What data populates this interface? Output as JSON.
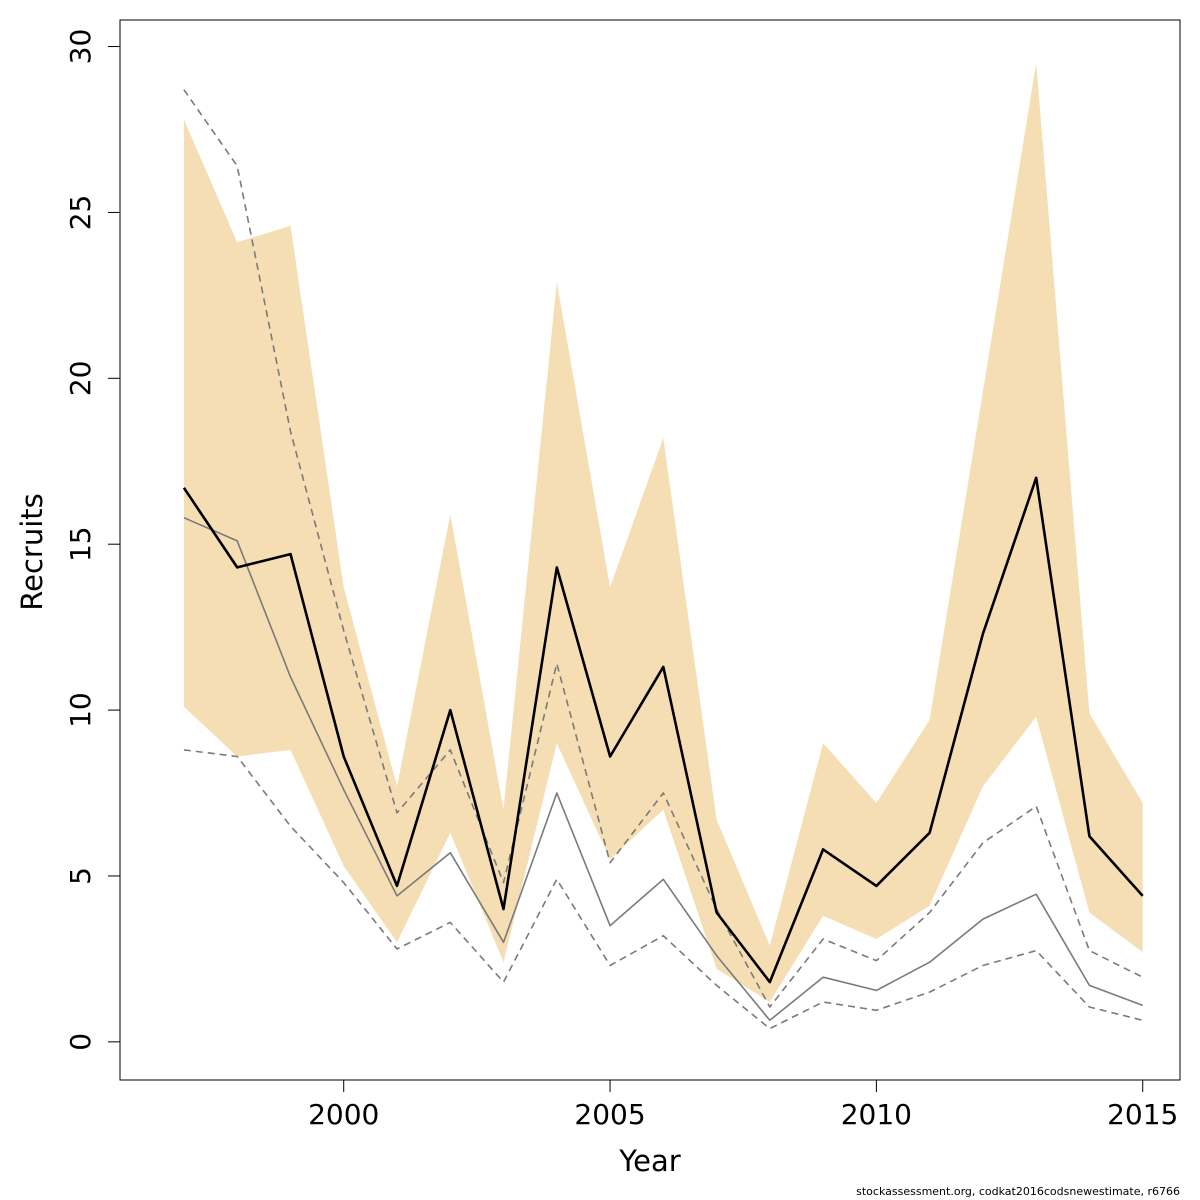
{
  "chart_data": {
    "type": "line",
    "xlabel": "Year",
    "ylabel": "Recruits",
    "x": [
      1997,
      1998,
      1999,
      2000,
      2001,
      2002,
      2003,
      2004,
      2005,
      2006,
      2007,
      2008,
      2009,
      2010,
      2011,
      2012,
      2013,
      2014,
      2015
    ],
    "xticks": [
      "2000",
      "2005",
      "2010",
      "2015"
    ],
    "yticks": [
      "0",
      "5",
      "10",
      "15",
      "20",
      "25",
      "30"
    ],
    "xlim": [
      1995.8,
      2015.7
    ],
    "ylim": [
      -1.15,
      30.8
    ],
    "grid": false,
    "legend": "none",
    "series": [
      {
        "role": "band",
        "lower": [
          10.1,
          8.6,
          8.8,
          5.3,
          3.0,
          6.3,
          2.4,
          9.0,
          5.5,
          7.0,
          2.2,
          1.2,
          3.8,
          3.1,
          4.1,
          7.7,
          9.8,
          3.9,
          2.7
        ],
        "upper": [
          27.8,
          24.1,
          24.6,
          13.7,
          7.7,
          15.9,
          7.0,
          22.9,
          13.7,
          18.2,
          6.7,
          2.9,
          9.0,
          7.2,
          9.7,
          19.6,
          29.5,
          9.9,
          7.2
        ],
        "color": "#f5deb3"
      },
      {
        "role": "estimate",
        "values": [
          16.7,
          14.3,
          14.7,
          8.6,
          4.7,
          10.0,
          4.0,
          14.3,
          8.6,
          11.3,
          3.9,
          1.8,
          5.8,
          4.7,
          6.3,
          12.3,
          17.0,
          6.2,
          4.4
        ],
        "color": "#000000"
      },
      {
        "role": "reference",
        "values": [
          15.8,
          15.1,
          11.0,
          7.6,
          4.4,
          5.7,
          3.0,
          7.5,
          3.5,
          4.9,
          2.6,
          0.65,
          1.95,
          1.55,
          2.4,
          3.7,
          4.45,
          1.7,
          1.1
        ],
        "color": "#7a7a7a"
      },
      {
        "role": "reference-upper",
        "values": [
          28.7,
          26.4,
          18.4,
          12.4,
          6.9,
          8.8,
          4.8,
          11.4,
          5.4,
          7.5,
          4.0,
          1.05,
          3.1,
          2.45,
          3.9,
          6.0,
          7.1,
          2.75,
          1.95
        ],
        "color": "#7a7a7a",
        "dash": "dashed"
      },
      {
        "role": "reference-lower",
        "values": [
          8.8,
          8.6,
          6.5,
          4.8,
          2.8,
          3.6,
          1.8,
          4.9,
          2.3,
          3.2,
          1.7,
          0.4,
          1.2,
          0.95,
          1.5,
          2.3,
          2.75,
          1.05,
          0.65
        ],
        "color": "#7a7a7a",
        "dash": "dashed"
      }
    ]
  },
  "footer": "stockassessment.org, codkat2016codsnewestimate, r6766"
}
